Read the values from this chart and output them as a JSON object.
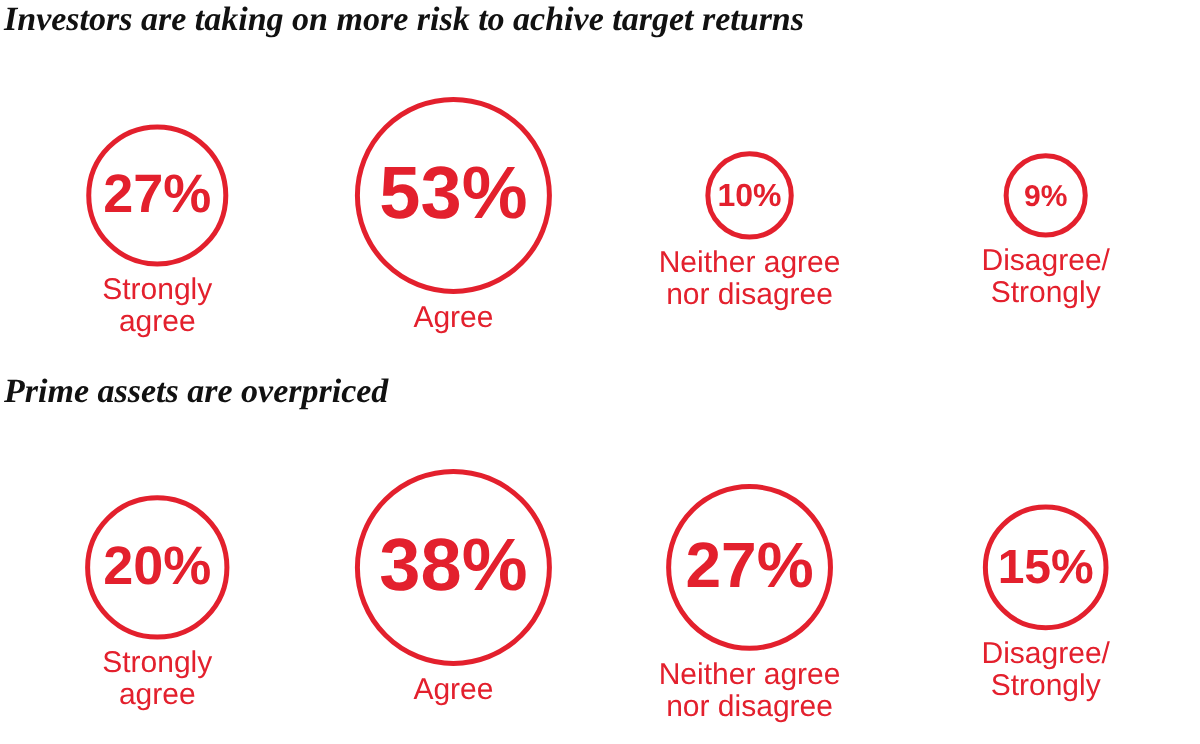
{
  "chart_data": [
    {
      "type": "other",
      "title": "Investors are taking on more risk to achive target returns",
      "categories": [
        "Strongly\nagree",
        "Agree",
        "Neither agree\nnor disagree",
        "Disagree/\nStrongly"
      ],
      "values": [
        27,
        53,
        10,
        9
      ],
      "value_labels": [
        "27%",
        "53%",
        "10%",
        "9%"
      ],
      "color": "#e3202d"
    },
    {
      "type": "other",
      "title": "Prime assets are overpriced",
      "categories": [
        "Strongly\nagree",
        "Agree",
        "Neither agree\nnor disagree",
        "Disagree/\nStrongly"
      ],
      "values": [
        20,
        38,
        27,
        15
      ],
      "value_labels": [
        "20%",
        "38%",
        "27%",
        "15%"
      ],
      "color": "#e3202d"
    }
  ]
}
